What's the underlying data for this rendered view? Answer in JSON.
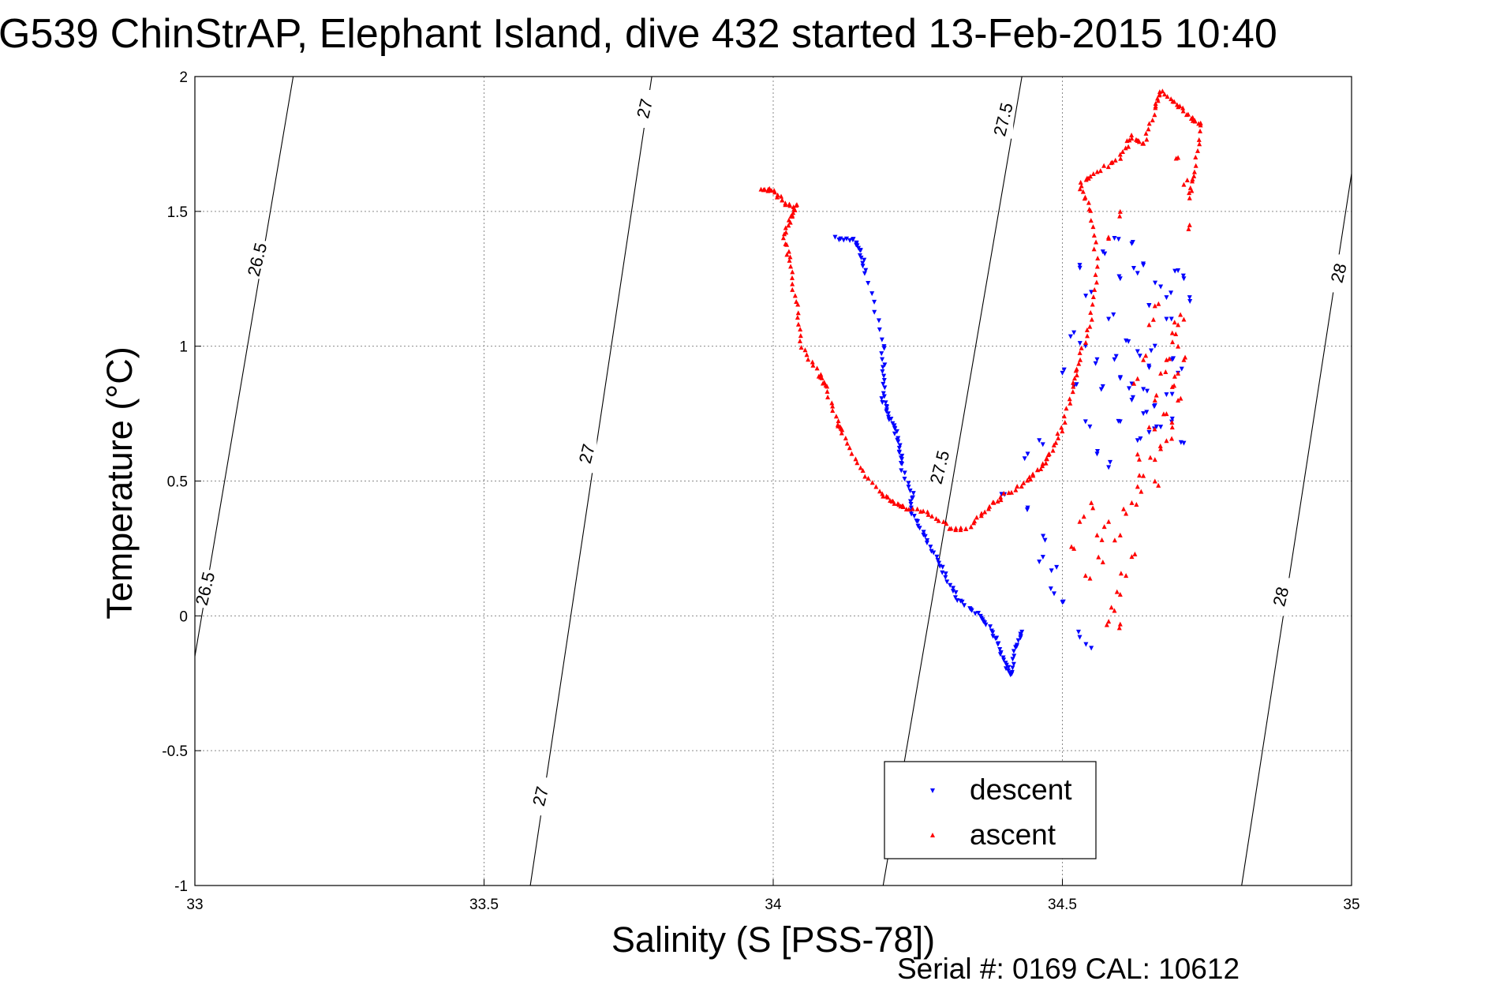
{
  "chart_data": {
    "type": "scatter",
    "title": "G539 ChinStrAP, Elephant Island, dive 432 started 13-Feb-2015 10:40",
    "xlabel": "Salinity (S [PSS-78])",
    "ylabel": "Temperature (°C)",
    "footer": "Serial #: 0169 CAL: 10612",
    "xlim": [
      33,
      35
    ],
    "ylim": [
      -1,
      2
    ],
    "xticks": [
      "33",
      "33.5",
      "34",
      "34.5",
      "35"
    ],
    "yticks": [
      "-1",
      "-0.5",
      "0",
      "0.5",
      "1",
      "1.5",
      "2"
    ],
    "grid": true,
    "legend_position": "bottom-center",
    "series": [
      {
        "name": "descent",
        "color": "#0000ff",
        "marker": "triangle-down",
        "anchors": [
          [
            34.11,
            1.4
          ],
          [
            34.14,
            1.39
          ],
          [
            34.15,
            1.35
          ],
          [
            34.16,
            1.27
          ],
          [
            34.19,
            1.02
          ],
          [
            34.19,
            0.9
          ],
          [
            34.19,
            0.8
          ],
          [
            34.2,
            0.75
          ],
          [
            34.21,
            0.69
          ],
          [
            34.22,
            0.62
          ],
          [
            34.22,
            0.56
          ],
          [
            34.24,
            0.45
          ],
          [
            34.24,
            0.38
          ],
          [
            34.26,
            0.3
          ],
          [
            34.28,
            0.22
          ],
          [
            34.3,
            0.14
          ],
          [
            34.32,
            0.06
          ],
          [
            34.35,
            0.01
          ],
          [
            34.37,
            -0.03
          ],
          [
            34.39,
            -0.1
          ],
          [
            34.4,
            -0.18
          ],
          [
            34.41,
            -0.22
          ],
          [
            34.42,
            -0.12
          ],
          [
            34.43,
            -0.06
          ]
        ],
        "scatter": [
          [
            34.4,
            0.45
          ],
          [
            34.44,
            0.4
          ],
          [
            34.44,
            0.6
          ],
          [
            34.46,
            0.65
          ],
          [
            34.46,
            0.2
          ],
          [
            34.48,
            0.1
          ],
          [
            34.5,
            0.05
          ],
          [
            34.5,
            0.9
          ],
          [
            34.52,
            0.85
          ],
          [
            34.52,
            1.05
          ],
          [
            34.54,
            1.0
          ],
          [
            34.56,
            0.95
          ],
          [
            34.55,
            1.2
          ],
          [
            34.58,
            1.1
          ],
          [
            34.6,
            1.25
          ],
          [
            34.62,
            1.38
          ],
          [
            34.63,
            1.27
          ],
          [
            34.65,
            1.15
          ],
          [
            34.67,
            1.22
          ],
          [
            34.7,
            1.28
          ],
          [
            34.71,
            1.25
          ],
          [
            34.68,
            1.1
          ],
          [
            34.66,
            1.0
          ],
          [
            34.69,
            0.95
          ],
          [
            34.7,
            0.9
          ],
          [
            34.68,
            0.82
          ],
          [
            34.66,
            0.78
          ],
          [
            34.64,
            0.75
          ],
          [
            34.62,
            0.8
          ],
          [
            34.6,
            0.72
          ],
          [
            34.63,
            0.65
          ],
          [
            34.65,
            0.68
          ],
          [
            34.67,
            0.7
          ],
          [
            34.69,
            0.73
          ],
          [
            34.71,
            0.64
          ],
          [
            34.56,
            0.6
          ],
          [
            34.58,
            0.55
          ],
          [
            34.54,
            0.72
          ],
          [
            34.57,
            0.85
          ],
          [
            34.59,
            0.95
          ],
          [
            34.61,
            1.02
          ],
          [
            34.63,
            0.98
          ],
          [
            34.65,
            0.92
          ],
          [
            34.53,
            -0.08
          ],
          [
            34.55,
            -0.12
          ],
          [
            34.49,
            0.18
          ],
          [
            34.47,
            0.28
          ],
          [
            34.53,
            1.3
          ],
          [
            34.57,
            1.35
          ],
          [
            34.59,
            1.4
          ],
          [
            34.64,
            1.3
          ],
          [
            34.68,
            1.18
          ],
          [
            34.72,
            1.18
          ],
          [
            34.6,
            0.88
          ],
          [
            34.62,
            0.86
          ],
          [
            34.64,
            0.84
          ]
        ]
      },
      {
        "name": "ascent",
        "color": "#ff0000",
        "marker": "triangle-up",
        "anchors": [
          [
            33.98,
            1.58
          ],
          [
            34.0,
            1.58
          ],
          [
            34.02,
            1.53
          ],
          [
            34.04,
            1.52
          ],
          [
            34.03,
            1.48
          ],
          [
            34.02,
            1.4
          ],
          [
            34.03,
            1.3
          ],
          [
            34.04,
            1.15
          ],
          [
            34.05,
            1.0
          ],
          [
            34.08,
            0.9
          ],
          [
            34.09,
            0.85
          ],
          [
            34.11,
            0.72
          ],
          [
            34.12,
            0.68
          ],
          [
            34.15,
            0.55
          ],
          [
            34.19,
            0.45
          ],
          [
            34.21,
            0.42
          ],
          [
            34.23,
            0.4
          ],
          [
            34.27,
            0.38
          ],
          [
            34.31,
            0.32
          ],
          [
            34.34,
            0.33
          ],
          [
            34.37,
            0.4
          ],
          [
            34.4,
            0.45
          ],
          [
            34.44,
            0.5
          ],
          [
            34.46,
            0.55
          ],
          [
            34.48,
            0.6
          ],
          [
            34.5,
            0.7
          ],
          [
            34.52,
            0.85
          ],
          [
            34.53,
            0.95
          ],
          [
            34.55,
            1.1
          ],
          [
            34.56,
            1.3
          ],
          [
            34.55,
            1.5
          ],
          [
            34.53,
            1.6
          ],
          [
            34.56,
            1.65
          ],
          [
            34.6,
            1.7
          ],
          [
            34.62,
            1.78
          ],
          [
            34.64,
            1.75
          ],
          [
            34.66,
            1.88
          ],
          [
            34.67,
            1.95
          ],
          [
            34.7,
            1.9
          ],
          [
            34.72,
            1.85
          ],
          [
            34.74,
            1.82
          ],
          [
            34.73,
            1.65
          ],
          [
            34.72,
            1.55
          ]
        ],
        "scatter": [
          [
            34.69,
            1.05
          ],
          [
            34.7,
            1.08
          ],
          [
            34.7,
            1.0
          ],
          [
            34.71,
            0.95
          ],
          [
            34.7,
            0.9
          ],
          [
            34.69,
            0.85
          ],
          [
            34.7,
            0.8
          ],
          [
            34.68,
            0.75
          ],
          [
            34.69,
            0.7
          ],
          [
            34.68,
            0.65
          ],
          [
            34.67,
            0.62
          ],
          [
            34.66,
            0.58
          ],
          [
            34.64,
            0.52
          ],
          [
            34.63,
            0.48
          ],
          [
            34.62,
            0.42
          ],
          [
            34.61,
            0.38
          ],
          [
            34.6,
            0.3
          ],
          [
            34.62,
            0.22
          ],
          [
            34.61,
            0.15
          ],
          [
            34.6,
            0.08
          ],
          [
            34.59,
            0.02
          ],
          [
            34.58,
            -0.02
          ],
          [
            34.6,
            -0.03
          ],
          [
            34.57,
            0.2
          ],
          [
            34.56,
            0.3
          ],
          [
            34.58,
            0.35
          ],
          [
            34.65,
            0.7
          ],
          [
            34.66,
            0.8
          ],
          [
            34.67,
            0.9
          ],
          [
            34.68,
            0.95
          ],
          [
            34.71,
            1.1
          ],
          [
            34.66,
            1.15
          ],
          [
            34.65,
            1.08
          ],
          [
            34.64,
            0.95
          ],
          [
            34.63,
            0.88
          ],
          [
            34.55,
            0.42
          ],
          [
            34.53,
            0.35
          ],
          [
            34.52,
            0.25
          ],
          [
            34.54,
            0.15
          ],
          [
            34.72,
            1.45
          ],
          [
            34.71,
            1.6
          ],
          [
            34.7,
            1.7
          ],
          [
            34.58,
            1.4
          ],
          [
            34.6,
            1.5
          ],
          [
            34.66,
            0.5
          ],
          [
            34.63,
            0.6
          ]
        ]
      }
    ],
    "isopycnals": [
      {
        "label": "26.5",
        "points": [
          [
            33.0,
            -0.15
          ],
          [
            33.17,
            2.0
          ]
        ]
      },
      {
        "label": "27",
        "points": [
          [
            33.58,
            -1.0
          ],
          [
            33.79,
            2.0
          ]
        ]
      },
      {
        "label": "27.5",
        "points": [
          [
            34.19,
            -1.0
          ],
          [
            34.43,
            2.0
          ]
        ]
      },
      {
        "label": "28",
        "points": [
          [
            34.81,
            -1.0
          ],
          [
            35.0,
            1.64
          ]
        ]
      }
    ],
    "contour_labels": [
      {
        "text": "26.5",
        "at": [
          33.11,
          1.32
        ]
      },
      {
        "text": "26.5",
        "at": [
          33.02,
          0.1
        ]
      },
      {
        "text": "27",
        "at": [
          33.78,
          1.88
        ]
      },
      {
        "text": "27",
        "at": [
          33.68,
          0.6
        ]
      },
      {
        "text": "27",
        "at": [
          33.6,
          -0.67
        ]
      },
      {
        "text": "27.5",
        "at": [
          34.4,
          1.84
        ]
      },
      {
        "text": "27.5",
        "at": [
          34.29,
          0.55
        ]
      },
      {
        "text": "28",
        "at": [
          34.98,
          1.27
        ]
      },
      {
        "text": "28",
        "at": [
          34.88,
          0.07
        ]
      }
    ]
  }
}
